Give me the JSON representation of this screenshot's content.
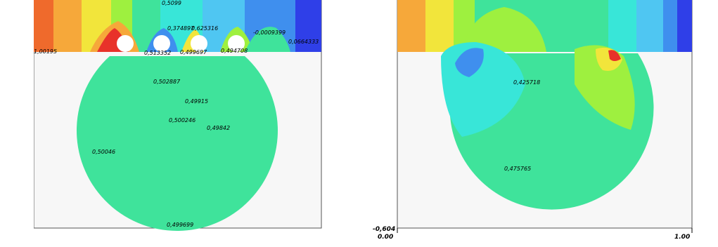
{
  "left_panel": {
    "labels": [
      "0,5099",
      "0,374897",
      "0,625316",
      "-0,0009399",
      "0,0664333",
      "1,00195",
      "0,513352",
      "0,499697",
      "0,494708",
      "0,502887",
      "0,49915",
      "0,500246",
      "0,49842",
      "0,50046",
      "0,499699"
    ]
  },
  "right_panel": {
    "labels": [
      "0,425718",
      "0,475765"
    ],
    "axis": {
      "y_min": "-0,604",
      "x_min": "0.00",
      "x_max": "1.00"
    }
  },
  "colors": {
    "dark_blue": "#2f3fe8",
    "blue": "#3f8fee",
    "light_blue": "#4fc6f2",
    "cyan": "#38e6d8",
    "green": "#3fe39b",
    "yellow_green": "#9ef03f",
    "yellow": "#f2e53b",
    "orange": "#f6a83a",
    "red_orange": "#ef6a2c",
    "red": "#e8322a"
  }
}
